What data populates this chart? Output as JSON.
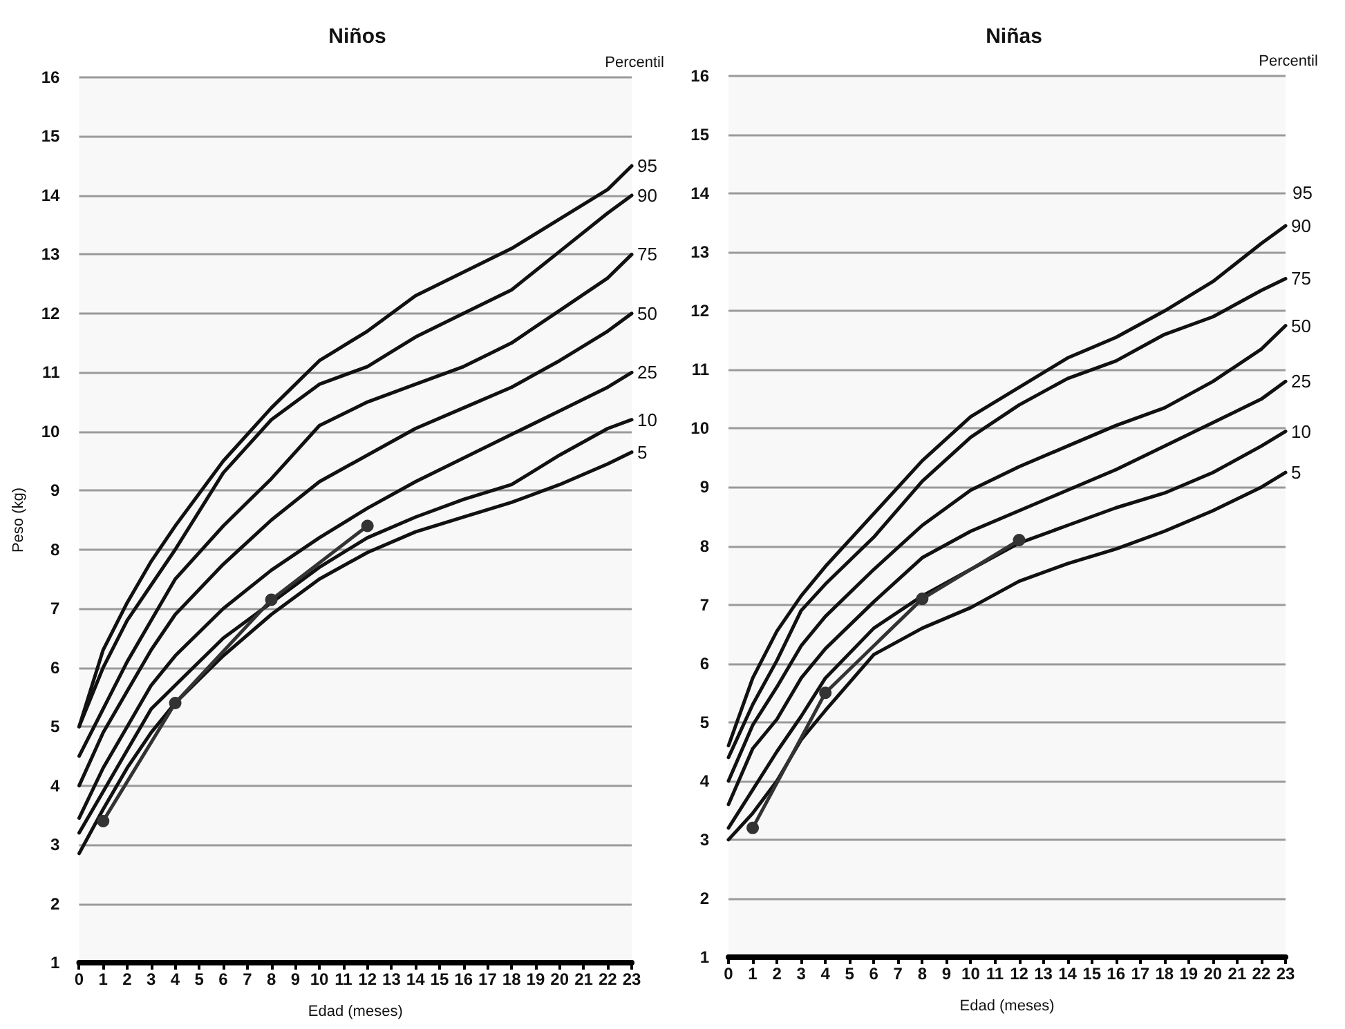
{
  "chart_data": [
    {
      "type": "line",
      "title": "Niños",
      "xlabel": "Edad (meses)",
      "ylabel": "Peso (kg)",
      "legend_title": "Percentil",
      "xlim": [
        0,
        23
      ],
      "xticks": [
        0,
        1,
        2,
        3,
        4,
        5,
        6,
        7,
        8,
        9,
        10,
        11,
        12,
        13,
        14,
        15,
        16,
        17,
        18,
        19,
        20,
        21,
        22,
        23
      ],
      "ylim": [
        1,
        16
      ],
      "yticks": [
        1,
        2,
        3,
        4,
        5,
        6,
        7,
        8,
        9,
        10,
        11,
        12,
        13,
        14,
        15,
        16
      ],
      "grid": "y",
      "legend": false,
      "x": [
        0,
        1,
        2,
        3,
        4,
        6,
        8,
        10,
        12,
        14,
        16,
        18,
        20,
        22,
        23
      ],
      "series": [
        {
          "name": "95",
          "color": "#111111",
          "marker": "none",
          "values": [
            5.0,
            6.3,
            7.1,
            7.8,
            8.4,
            9.5,
            10.4,
            11.2,
            11.7,
            12.3,
            12.7,
            13.1,
            13.6,
            14.1,
            14.5
          ]
        },
        {
          "name": "90",
          "color": "#111111",
          "marker": "none",
          "values": [
            5.0,
            6.0,
            6.8,
            7.4,
            8.0,
            9.3,
            10.2,
            10.8,
            11.1,
            11.6,
            12.0,
            12.4,
            13.05,
            13.7,
            14.0
          ]
        },
        {
          "name": "75",
          "color": "#111111",
          "marker": "none",
          "values": [
            4.5,
            5.3,
            6.1,
            6.8,
            7.5,
            8.4,
            9.2,
            10.1,
            10.5,
            10.8,
            11.1,
            11.5,
            12.05,
            12.6,
            13.0
          ]
        },
        {
          "name": "50",
          "color": "#111111",
          "marker": "none",
          "values": [
            4.0,
            4.9,
            5.6,
            6.3,
            6.9,
            7.75,
            8.5,
            9.15,
            9.6,
            10.05,
            10.4,
            10.75,
            11.2,
            11.7,
            12.0
          ]
        },
        {
          "name": "25",
          "color": "#111111",
          "marker": "none",
          "values": [
            3.45,
            4.3,
            5.0,
            5.7,
            6.2,
            7.0,
            7.65,
            8.2,
            8.7,
            9.15,
            9.55,
            9.95,
            10.35,
            10.75,
            11.0
          ]
        },
        {
          "name": "10",
          "color": "#111111",
          "marker": "none",
          "values": [
            3.2,
            3.9,
            4.6,
            5.3,
            5.7,
            6.5,
            7.1,
            7.7,
            8.2,
            8.55,
            8.85,
            9.1,
            9.6,
            10.05,
            10.2
          ]
        },
        {
          "name": "5",
          "color": "#111111",
          "marker": "none",
          "values": [
            2.85,
            3.6,
            4.3,
            4.9,
            5.4,
            6.2,
            6.9,
            7.5,
            7.95,
            8.3,
            8.55,
            8.8,
            9.1,
            9.45,
            9.65
          ]
        },
        {
          "color": "#333333",
          "marker": "circle",
          "x": [
            1,
            4,
            8,
            12
          ],
          "values": [
            3.4,
            5.4,
            7.15,
            8.4
          ]
        }
      ]
    },
    {
      "type": "line",
      "title": "Niñas",
      "xlabel": "Edad (meses)",
      "legend_title": "Percentil",
      "annotations": [
        "95"
      ],
      "xlim": [
        0,
        23
      ],
      "xticks": [
        0,
        1,
        2,
        3,
        4,
        5,
        6,
        7,
        8,
        9,
        10,
        11,
        12,
        13,
        14,
        15,
        16,
        17,
        18,
        19,
        20,
        21,
        22,
        23
      ],
      "ylim": [
        1,
        16
      ],
      "yticks": [
        1,
        2,
        3,
        4,
        5,
        6,
        7,
        8,
        9,
        10,
        11,
        12,
        13,
        14,
        15,
        16
      ],
      "grid": "y",
      "legend": false,
      "x": [
        0,
        1,
        2,
        3,
        4,
        6,
        8,
        10,
        12,
        14,
        16,
        18,
        20,
        22,
        23
      ],
      "series": [
        {
          "name": "90",
          "color": "#111111",
          "marker": "none",
          "values": [
            4.6,
            5.75,
            6.55,
            7.15,
            7.65,
            8.55,
            9.45,
            10.2,
            10.7,
            11.2,
            11.55,
            12.0,
            12.5,
            13.15,
            13.45
          ]
        },
        {
          "name": "75",
          "color": "#111111",
          "marker": "none",
          "values": [
            4.4,
            5.3,
            6.05,
            6.9,
            7.35,
            8.15,
            9.1,
            9.85,
            10.4,
            10.85,
            11.15,
            11.6,
            11.9,
            12.35,
            12.55
          ]
        },
        {
          "name": "50",
          "color": "#111111",
          "marker": "none",
          "values": [
            4.0,
            4.95,
            5.6,
            6.3,
            6.8,
            7.6,
            8.35,
            8.95,
            9.35,
            9.7,
            10.05,
            10.35,
            10.8,
            11.35,
            11.75
          ]
        },
        {
          "name": "25",
          "color": "#111111",
          "marker": "none",
          "values": [
            3.6,
            4.55,
            5.05,
            5.75,
            6.25,
            7.05,
            7.8,
            8.25,
            8.6,
            8.95,
            9.3,
            9.7,
            10.1,
            10.5,
            10.8
          ]
        },
        {
          "name": "10",
          "color": "#111111",
          "marker": "none",
          "values": [
            3.2,
            3.85,
            4.5,
            5.1,
            5.75,
            6.6,
            7.15,
            7.6,
            8.05,
            8.35,
            8.65,
            8.9,
            9.25,
            9.7,
            9.95
          ]
        },
        {
          "name": "5",
          "color": "#111111",
          "marker": "none",
          "values": [
            3.0,
            3.45,
            4.0,
            4.7,
            5.2,
            6.15,
            6.6,
            6.95,
            7.4,
            7.7,
            7.95,
            8.25,
            8.6,
            9.0,
            9.25
          ]
        },
        {
          "color": "#333333",
          "marker": "circle",
          "x": [
            1,
            4,
            8,
            12
          ],
          "values": [
            3.2,
            5.5,
            7.1,
            8.1
          ]
        }
      ]
    }
  ]
}
